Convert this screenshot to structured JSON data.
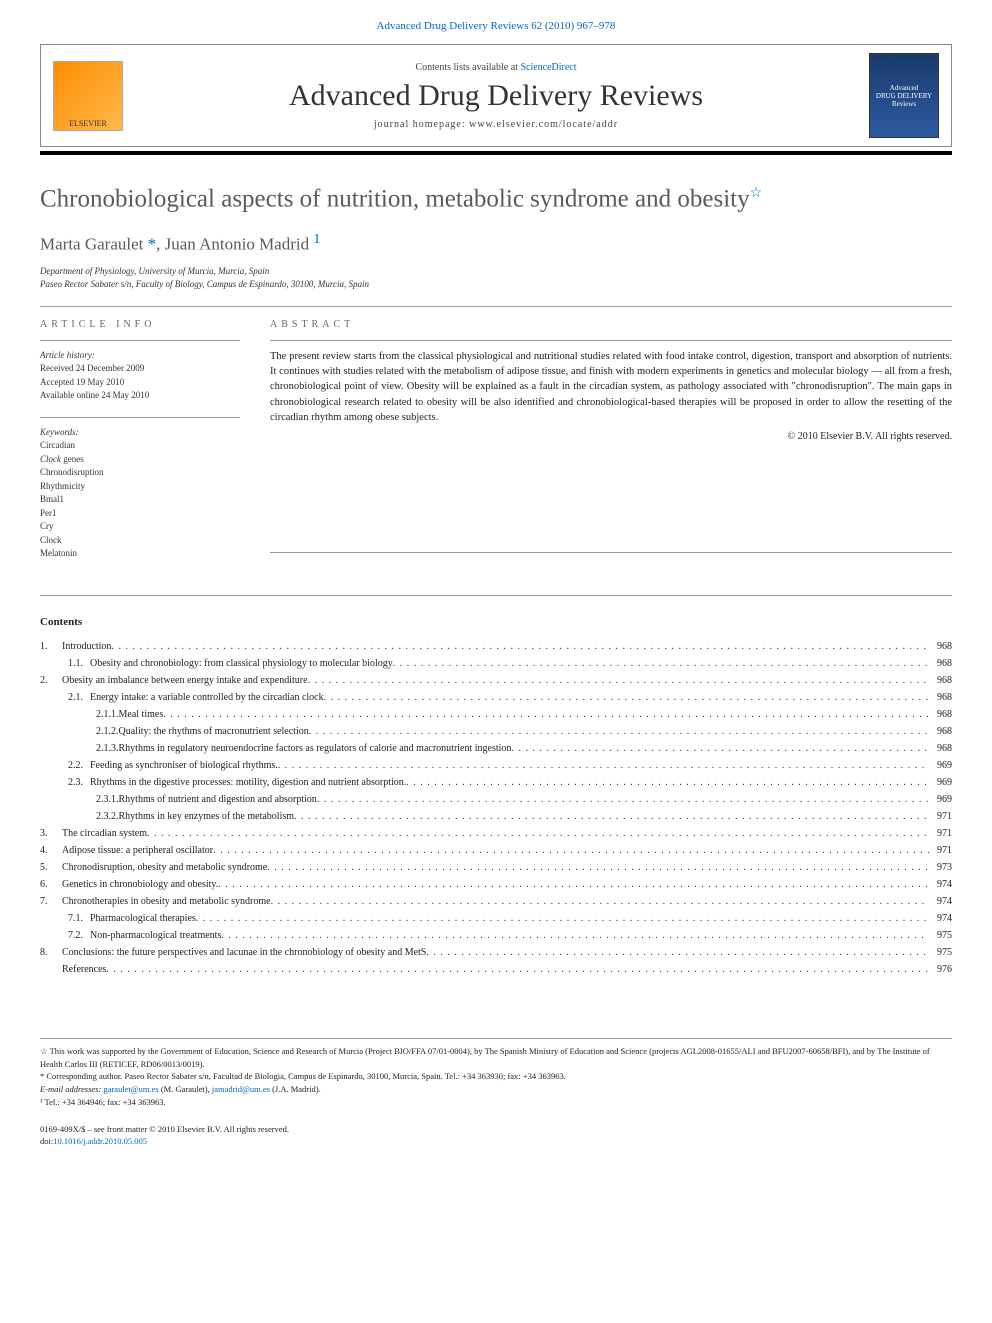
{
  "header": {
    "topLink": "Advanced Drug Delivery Reviews 62 (2010) 967–978",
    "contentsPrefix": "Contents lists available at ",
    "contentsLink": "ScienceDirect",
    "journal": "Advanced Drug Delivery Reviews",
    "homepage": "journal homepage: www.elsevier.com/locate/addr",
    "leftLogoText": "ELSEVIER",
    "rightLogoText1": "Advanced",
    "rightLogoText2": "DRUG DELIVERY",
    "rightLogoText3": "Reviews"
  },
  "article": {
    "title": "Chronobiological aspects of nutrition, metabolic syndrome and obesity",
    "titleStar": "☆",
    "authorsHtml": [
      "Marta Garaulet ",
      "*",
      ", Juan Antonio Madrid ",
      "1"
    ],
    "affiliations": [
      "Department of Physiology, University of Murcia, Murcia, Spain",
      "Paseo Rector Sabater s/n, Faculty of Biology, Campus de Espinardo, 30100, Murcia, Spain"
    ]
  },
  "info": {
    "sectionTitle": "ARTICLE INFO",
    "historyLabel": "Article history:",
    "history": [
      "Received 24 December 2009",
      "Accepted 19 May 2010",
      "Available online 24 May 2010"
    ],
    "keywordsLabel": "Keywords:",
    "keywords": [
      "Circadian",
      "Clock genes",
      "Chronodisruption",
      "Rhythmicity",
      "Bmal1",
      "Per1",
      "Cry",
      "Clock",
      "Melatonin"
    ]
  },
  "abstract": {
    "sectionTitle": "ABSTRACT",
    "text": "The present review starts from the classical physiological and nutritional studies related with food intake control, digestion, transport and absorption of nutrients. It continues with studies related with the metabolism of adipose tissue, and finish with modern experiments in genetics and molecular biology — all from a fresh, chronobiological point of view. Obesity will be explained as a fault in the circadian system, as pathology associated with \"chronodisruption\". The main gaps in chronobiological research related to obesity will be also identified and chronobiological-based therapies will be proposed in order to allow the resetting of the circadian rhythm among obese subjects.",
    "copyright": "© 2010 Elsevier B.V. All rights reserved."
  },
  "contents": {
    "title": "Contents",
    "items": [
      {
        "num": "1.",
        "label": "Introduction",
        "page": "968",
        "indent": 0
      },
      {
        "num": "1.1.",
        "label": "Obesity and chronobiology: from classical physiology to molecular biology",
        "page": "968",
        "indent": 1
      },
      {
        "num": "2.",
        "label": "Obesity an imbalance between energy intake and expenditure",
        "page": "968",
        "indent": 0
      },
      {
        "num": "2.1.",
        "label": "Energy intake: a variable controlled by the circadian clock",
        "page": "968",
        "indent": 1
      },
      {
        "num": "2.1.1.",
        "label": "Meal times",
        "page": "968",
        "indent": 2
      },
      {
        "num": "2.1.2.",
        "label": "Quality: the rhythms of macronutrient selection",
        "page": "968",
        "indent": 2
      },
      {
        "num": "2.1.3.",
        "label": "Rhythms in regulatory neuroendocrine factors as regulators of calorie and macronutrient ingestion",
        "page": "968",
        "indent": 2
      },
      {
        "num": "2.2.",
        "label": "Feeding as synchroniser of biological rhythms.",
        "page": "969",
        "indent": 1
      },
      {
        "num": "2.3.",
        "label": "Rhythms in the digestive processes: motility, digestion and nutrient absorption.",
        "page": "969",
        "indent": 1
      },
      {
        "num": "2.3.1.",
        "label": "Rhythms of nutrient and digestion and absorption",
        "page": "969",
        "indent": 2
      },
      {
        "num": "2.3.2.",
        "label": "Rhythms in key enzymes of the metabolism",
        "page": "971",
        "indent": 2
      },
      {
        "num": "3.",
        "label": "The circadian system",
        "page": "971",
        "indent": 0
      },
      {
        "num": "4.",
        "label": "Adipose tissue: a peripheral oscillator",
        "page": "971",
        "indent": 0
      },
      {
        "num": "5.",
        "label": "Chronodisruption, obesity and metabolic syndrome",
        "page": "973",
        "indent": 0
      },
      {
        "num": "6.",
        "label": "Genetics in chronobiology and obesity.",
        "page": "974",
        "indent": 0
      },
      {
        "num": "7.",
        "label": "Chronotherapies in obesity and metabolic syndrome",
        "page": "974",
        "indent": 0
      },
      {
        "num": "7.1.",
        "label": "Pharmacological therapies",
        "page": "974",
        "indent": 1
      },
      {
        "num": "7.2.",
        "label": "Non-pharmacological treatments",
        "page": "975",
        "indent": 1
      },
      {
        "num": "8.",
        "label": "Conclusions: the future perspectives and lacunae in the chronobiology of obesity and MetS",
        "page": "975",
        "indent": 0
      },
      {
        "num": "",
        "label": "References",
        "page": "976",
        "indent": 0
      }
    ]
  },
  "footnotes": {
    "star": "☆  This work was supported by the Government of Education, Science and Research of Murcia (Project BIO/FFA 07/01-0004), by The Spanish Ministry of Education and Science (projects AGL2008-01655/ALI and BFU2007-60658/BFI), and by The Institute of Health Carlos III (RETICEF, RD06/0013/0019).",
    "corr": "*  Corresponding author. Paseo Rector Sabater s/n, Facultad de Biologia, Campus de Espinardo, 30100, Murcia, Spain. Tel.: +34 363930; fax: +34 363963.",
    "emailLabel": "E-mail addresses: ",
    "email1": "garaulet@um.es",
    "email1who": " (M. Garaulet), ",
    "email2": "jamadrid@um.es",
    "email2who": " (J.A. Madrid).",
    "fn1": "¹  Tel.: +34 364946; fax: +34 363963."
  },
  "footer": {
    "line1": "0169-409X/$ – see front matter © 2010 Elsevier B.V. All rights reserved.",
    "doiLabel": "doi:",
    "doi": "10.1016/j.addr.2010.05.005"
  },
  "styling": {
    "link_color": "#0066cc",
    "text_color": "#222222",
    "heading_color": "#5a5a5a",
    "border_color": "#999999",
    "title_fontsize": 25,
    "authors_fontsize": 17,
    "body_fontsize": 10.5,
    "toc_fontsize": 10,
    "footnote_fontsize": 8.5
  }
}
